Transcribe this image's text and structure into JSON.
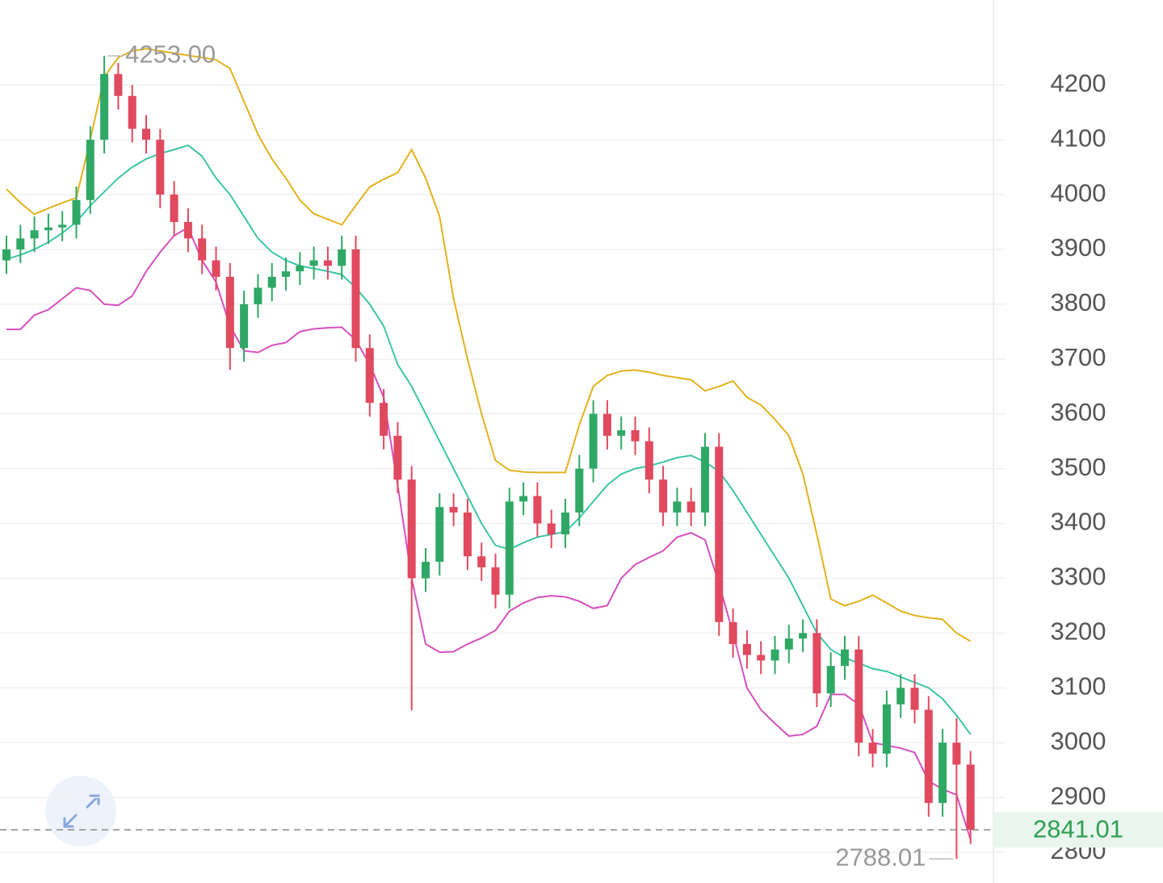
{
  "chart_data": {
    "type": "candlestick",
    "ylim": [
      2744,
      4355
    ],
    "yticks": [
      2800,
      2900,
      3000,
      3100,
      3200,
      3300,
      3400,
      3500,
      3600,
      3700,
      3800,
      3900,
      4000,
      4100,
      4200
    ],
    "grid": true,
    "up_color": "#2fa866",
    "down_color": "#e0495e",
    "candles": {
      "open": [
        3880,
        3900,
        3920,
        3935,
        3940,
        3945,
        3990,
        4100,
        4220,
        4180,
        4120,
        4100,
        4000,
        3950,
        3920,
        3880,
        3850,
        3720,
        3800,
        3830,
        3850,
        3860,
        3870,
        3880,
        3870,
        3900,
        3720,
        3620,
        3560,
        3480,
        3300,
        3330,
        3430,
        3420,
        3340,
        3320,
        3270,
        3440,
        3450,
        3400,
        3380,
        3420,
        3500,
        3600,
        3560,
        3570,
        3550,
        3480,
        3420,
        3440,
        3420,
        3540,
        3220,
        3180,
        3160,
        3150,
        3170,
        3190,
        3200,
        3090,
        3140,
        3170,
        3000,
        2980,
        3070,
        3100,
        3060,
        2890,
        3000,
        2960
      ],
      "high": [
        3925,
        3945,
        3960,
        3965,
        3970,
        4015,
        4125,
        4253,
        4240,
        4200,
        4145,
        4120,
        4025,
        3975,
        3945,
        3905,
        3875,
        3825,
        3855,
        3875,
        3885,
        3895,
        3905,
        3905,
        3925,
        3925,
        3745,
        3645,
        3585,
        3505,
        3355,
        3455,
        3455,
        3445,
        3365,
        3345,
        3465,
        3475,
        3475,
        3425,
        3445,
        3525,
        3625,
        3625,
        3595,
        3595,
        3575,
        3505,
        3465,
        3465,
        3565,
        3565,
        3245,
        3205,
        3185,
        3195,
        3215,
        3225,
        3225,
        3165,
        3195,
        3195,
        3025,
        3095,
        3125,
        3125,
        3085,
        3025,
        3045,
        2985
      ],
      "low": [
        3855,
        3875,
        3895,
        3910,
        3915,
        3920,
        3965,
        4075,
        4155,
        4095,
        4075,
        3975,
        3925,
        3895,
        3855,
        3825,
        3680,
        3695,
        3775,
        3805,
        3825,
        3835,
        3845,
        3845,
        3845,
        3695,
        3595,
        3535,
        3455,
        3059,
        3275,
        3305,
        3395,
        3315,
        3295,
        3245,
        3245,
        3415,
        3375,
        3355,
        3355,
        3395,
        3475,
        3535,
        3535,
        3525,
        3455,
        3395,
        3395,
        3395,
        3395,
        3195,
        3155,
        3135,
        3125,
        3125,
        3145,
        3165,
        3065,
        3065,
        3115,
        2975,
        2955,
        2955,
        3045,
        3035,
        2865,
        2865,
        2788.01,
        2815
      ],
      "close": [
        3900,
        3920,
        3935,
        3940,
        3945,
        3990,
        4100,
        4220,
        4180,
        4120,
        4100,
        4000,
        3950,
        3920,
        3880,
        3850,
        3720,
        3800,
        3830,
        3850,
        3860,
        3870,
        3880,
        3870,
        3900,
        3720,
        3620,
        3560,
        3480,
        3300,
        3330,
        3430,
        3420,
        3340,
        3320,
        3270,
        3440,
        3450,
        3400,
        3380,
        3420,
        3500,
        3600,
        3560,
        3570,
        3550,
        3480,
        3420,
        3440,
        3420,
        3540,
        3220,
        3180,
        3160,
        3150,
        3170,
        3190,
        3200,
        3090,
        3140,
        3170,
        3000,
        2980,
        3070,
        3100,
        3060,
        2890,
        3000,
        2960,
        2841.01
      ]
    },
    "bands": [
      {
        "color": "#e3b21e",
        "values": [
          4010,
          3985,
          3964,
          3975,
          3985,
          3994,
          4100,
          4215,
          4250,
          4262,
          4266,
          4262,
          4258,
          4254,
          4250,
          4246,
          4230,
          4170,
          4110,
          4065,
          4030,
          3990,
          3965,
          3955,
          3945,
          3980,
          4014,
          4028,
          4040,
          4082,
          4030,
          3960,
          3810,
          3700,
          3600,
          3515,
          3497,
          3494,
          3493,
          3493,
          3493,
          3580,
          3650,
          3670,
          3678,
          3680,
          3676,
          3670,
          3666,
          3662,
          3642,
          3650,
          3660,
          3630,
          3616,
          3590,
          3560,
          3490,
          3380,
          3262,
          3250,
          3258,
          3269,
          3255,
          3240,
          3232,
          3228,
          3225,
          3200,
          3185
        ]
      },
      {
        "color": "#3cc6a6",
        "values": [
          3882,
          3890,
          3900,
          3913,
          3930,
          3950,
          3980,
          4005,
          4030,
          4050,
          4065,
          4075,
          4082,
          4090,
          4070,
          4030,
          4000,
          3960,
          3920,
          3895,
          3880,
          3870,
          3865,
          3860,
          3854,
          3830,
          3800,
          3760,
          3690,
          3650,
          3600,
          3550,
          3500,
          3450,
          3400,
          3360,
          3353,
          3365,
          3375,
          3380,
          3385,
          3410,
          3440,
          3470,
          3490,
          3500,
          3505,
          3512,
          3520,
          3524,
          3512,
          3495,
          3460,
          3420,
          3380,
          3340,
          3300,
          3250,
          3200,
          3170,
          3155,
          3145,
          3135,
          3130,
          3120,
          3110,
          3100,
          3080,
          3050,
          3015
        ]
      },
      {
        "color": "#d64fbf",
        "values": [
          3754,
          3754,
          3780,
          3790,
          3810,
          3830,
          3825,
          3800,
          3798,
          3815,
          3860,
          3895,
          3925,
          3940,
          3880,
          3840,
          3760,
          3715,
          3712,
          3725,
          3730,
          3750,
          3755,
          3757,
          3758,
          3735,
          3690,
          3630,
          3470,
          3300,
          3180,
          3165,
          3166,
          3180,
          3191,
          3205,
          3240,
          3255,
          3265,
          3268,
          3266,
          3258,
          3245,
          3250,
          3300,
          3325,
          3338,
          3350,
          3375,
          3383,
          3370,
          3290,
          3200,
          3100,
          3060,
          3035,
          3012,
          3015,
          3030,
          3088,
          3088,
          3070,
          3000,
          2995,
          2990,
          2982,
          2930,
          2915,
          2905,
          2823
        ]
      }
    ],
    "max_label": "4253.00",
    "min_label": "2788.01",
    "last_label": "2841.01"
  }
}
